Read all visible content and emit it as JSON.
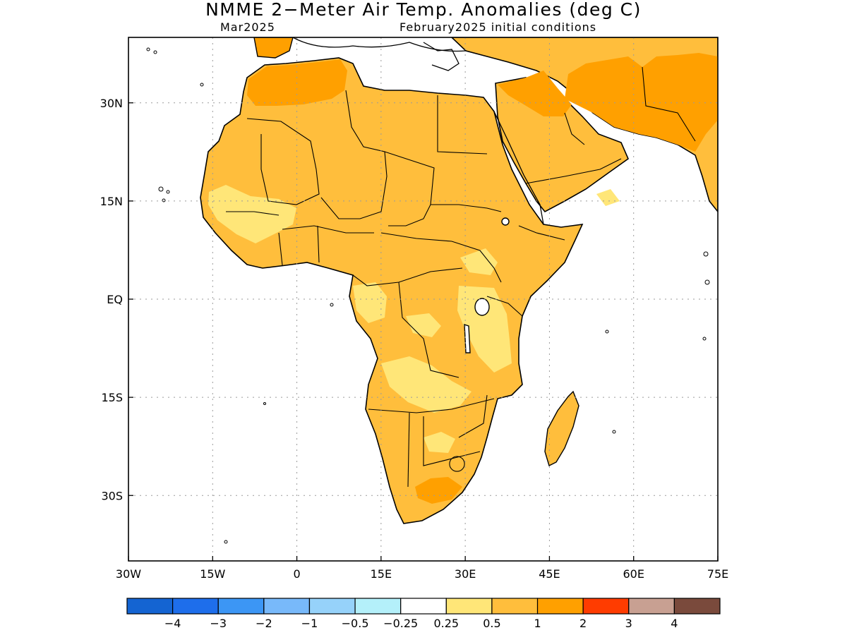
{
  "title": "NMME 2−Meter Air Temp. Anomalies (deg C)",
  "valid_month": "Mar2025",
  "initial_conditions": "February2025 initial conditions",
  "axes": {
    "lon_ticks": [
      "30W",
      "15W",
      "0",
      "15E",
      "30E",
      "45E",
      "60E",
      "75E"
    ],
    "lat_ticks": [
      "30N",
      "15N",
      "EQ",
      "15S",
      "30S"
    ],
    "lon_range": [
      -30,
      75
    ],
    "lat_range": [
      -40,
      40
    ]
  },
  "colorbar": {
    "colors": [
      "#1464d2",
      "#1e6eeb",
      "#3c96f5",
      "#78b9fa",
      "#96d2fa",
      "#b4f0fa",
      "#ffffff",
      "#ffe678",
      "#ffbe3c",
      "#ffa000",
      "#ff3c00",
      "#c8a092",
      "#7a4a3c"
    ],
    "labels": [
      "−4",
      "−3",
      "−2",
      "−1",
      "−0.5",
      "−0.25",
      "0.25",
      "0.5",
      "1",
      "2",
      "3",
      "4"
    ]
  },
  "colors": {
    "anom_0_25_0_5": "#ffe678",
    "anom_0_5_1": "#ffbe3c",
    "anom_1_2": "#ffa000"
  }
}
